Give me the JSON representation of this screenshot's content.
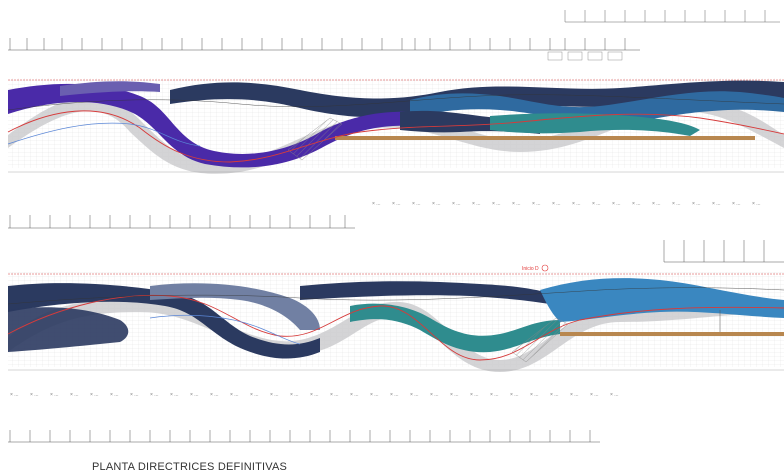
{
  "drawing": {
    "title": "PLANTA DIRECTRICES DEFINITIVAS",
    "annotation_marker": "Inicio D"
  },
  "colors": {
    "navy": "#2b3a60",
    "purple": "#4a2aa8",
    "lavender": "#6a5fb0",
    "blue": "#2f6aa0",
    "lightblue": "#3a87c0",
    "teal": "#2f8c8e",
    "slate": "#7180a3",
    "grey_band": "#c9c9cc",
    "wood": "#b8874f",
    "red_line": "#d63b3b",
    "blue_line": "#5a86d6",
    "grid": "#d6d6d6"
  },
  "strips": [
    {
      "id": "top-upper"
    },
    {
      "id": "top-lower"
    },
    {
      "id": "bottom-upper"
    },
    {
      "id": "bottom-lower"
    }
  ]
}
